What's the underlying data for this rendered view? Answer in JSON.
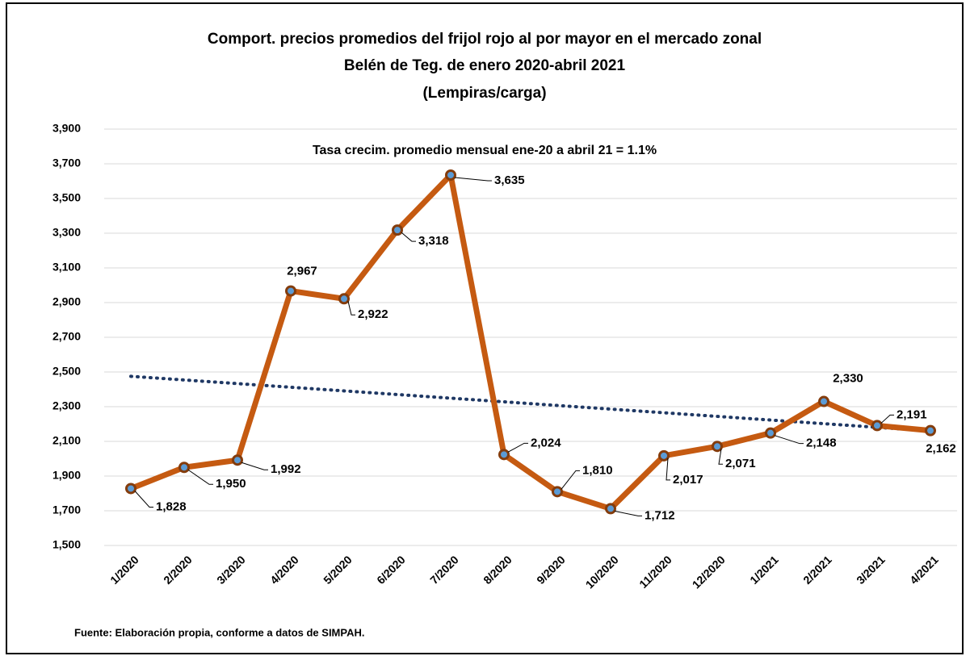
{
  "chart_data": {
    "type": "line",
    "title": [
      "Comport. precios promedios del frijol rojo al por mayor en el mercado zonal",
      "Belén de Teg. de enero 2020-abril 2021",
      "(Lempiras/carga)"
    ],
    "annotation": "Tasa crecim. promedio mensual ene-20 a abril 21 = 1.1%",
    "source": "Fuente: Elaboración propia, conforme a datos de SIMPAH.",
    "categories": [
      "1/2020",
      "2/2020",
      "3/2020",
      "4/2020",
      "5/2020",
      "6/2020",
      "7/2020",
      "8/2020",
      "9/2020",
      "10/2020",
      "11/2020",
      "12/2020",
      "1/2021",
      "2/2021",
      "3/2021",
      "4/2021"
    ],
    "values": [
      1828,
      1950,
      1992,
      2967,
      2922,
      3318,
      3635,
      2024,
      1810,
      1712,
      2017,
      2071,
      2148,
      2330,
      2191,
      2162
    ],
    "value_labels": [
      "1,828",
      "1,950",
      "1,992",
      "2,967",
      "2,922",
      "3,318",
      "3,635",
      "2,024",
      "1,810",
      "1,712",
      "2,017",
      "2,071",
      "2,148",
      "2,330",
      "2,191",
      "2,162"
    ],
    "color": "#c55a11",
    "marker_color": "#5b9bd5",
    "trend_values": [
      2475,
      2160
    ],
    "trend_color": "#1f3864",
    "ylim": [
      1500,
      3900
    ],
    "yticks": [
      {
        "value": 1500,
        "label": "1,500"
      },
      {
        "value": 1700,
        "label": "1,700"
      },
      {
        "value": 1900,
        "label": "1,900"
      },
      {
        "value": 2100,
        "label": "2,100"
      },
      {
        "value": 2300,
        "label": "2,300"
      },
      {
        "value": 2500,
        "label": "2,500"
      },
      {
        "value": 2700,
        "label": "2,700"
      },
      {
        "value": 2900,
        "label": "2,900"
      },
      {
        "value": 3100,
        "label": "3,100"
      },
      {
        "value": 3300,
        "label": "3,300"
      },
      {
        "value": 3500,
        "label": "3,500"
      },
      {
        "value": 3700,
        "label": "3,700"
      },
      {
        "value": 3900,
        "label": "3,900"
      }
    ],
    "grid": true
  }
}
